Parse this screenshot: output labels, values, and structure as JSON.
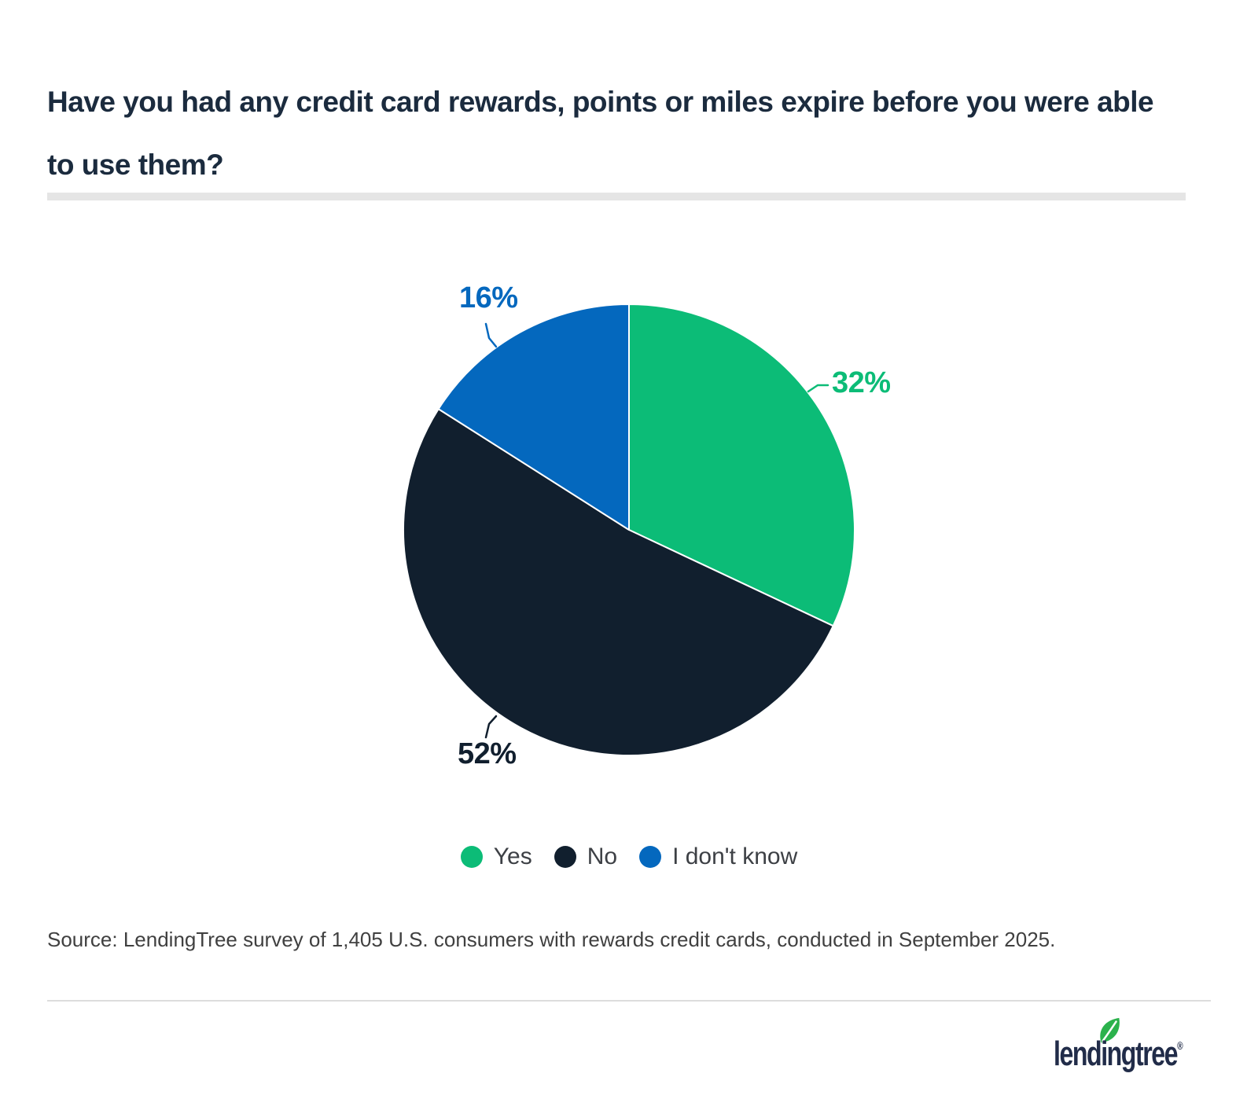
{
  "page": {
    "title_line1": "Have you had any credit card rewards, points or miles expire before you were able",
    "title_line2": "to use them?",
    "source": "Source: LendingTree survey of 1,405 U.S. consumers with rewards credit cards, conducted in September 2025."
  },
  "chart_data": {
    "type": "pie",
    "title": "Have you had any credit card rewards, points or miles expire before you were able to use them?",
    "start_angle_deg": 0,
    "direction": "clockwise",
    "legend_position": "bottom",
    "slices": [
      {
        "name": "Yes",
        "value": 32,
        "label": "32%",
        "color": "#0cbc77"
      },
      {
        "name": "No",
        "value": 52,
        "label": "52%",
        "color": "#111f2e"
      },
      {
        "name": "I don't know",
        "value": 16,
        "label": "16%",
        "color": "#0468be"
      }
    ],
    "slice_border_color": "#ffffff"
  },
  "style": {
    "title_color": "#1b2b3e",
    "divider_color": "#e5e5e5",
    "legend_text_color": "#3d4045",
    "source_text_color": "#404040"
  },
  "footer": {
    "logo_text": "lendingtree",
    "logo_trademark": "®",
    "logo_color": "#212c49",
    "leaf_color": "#2bb24c"
  }
}
